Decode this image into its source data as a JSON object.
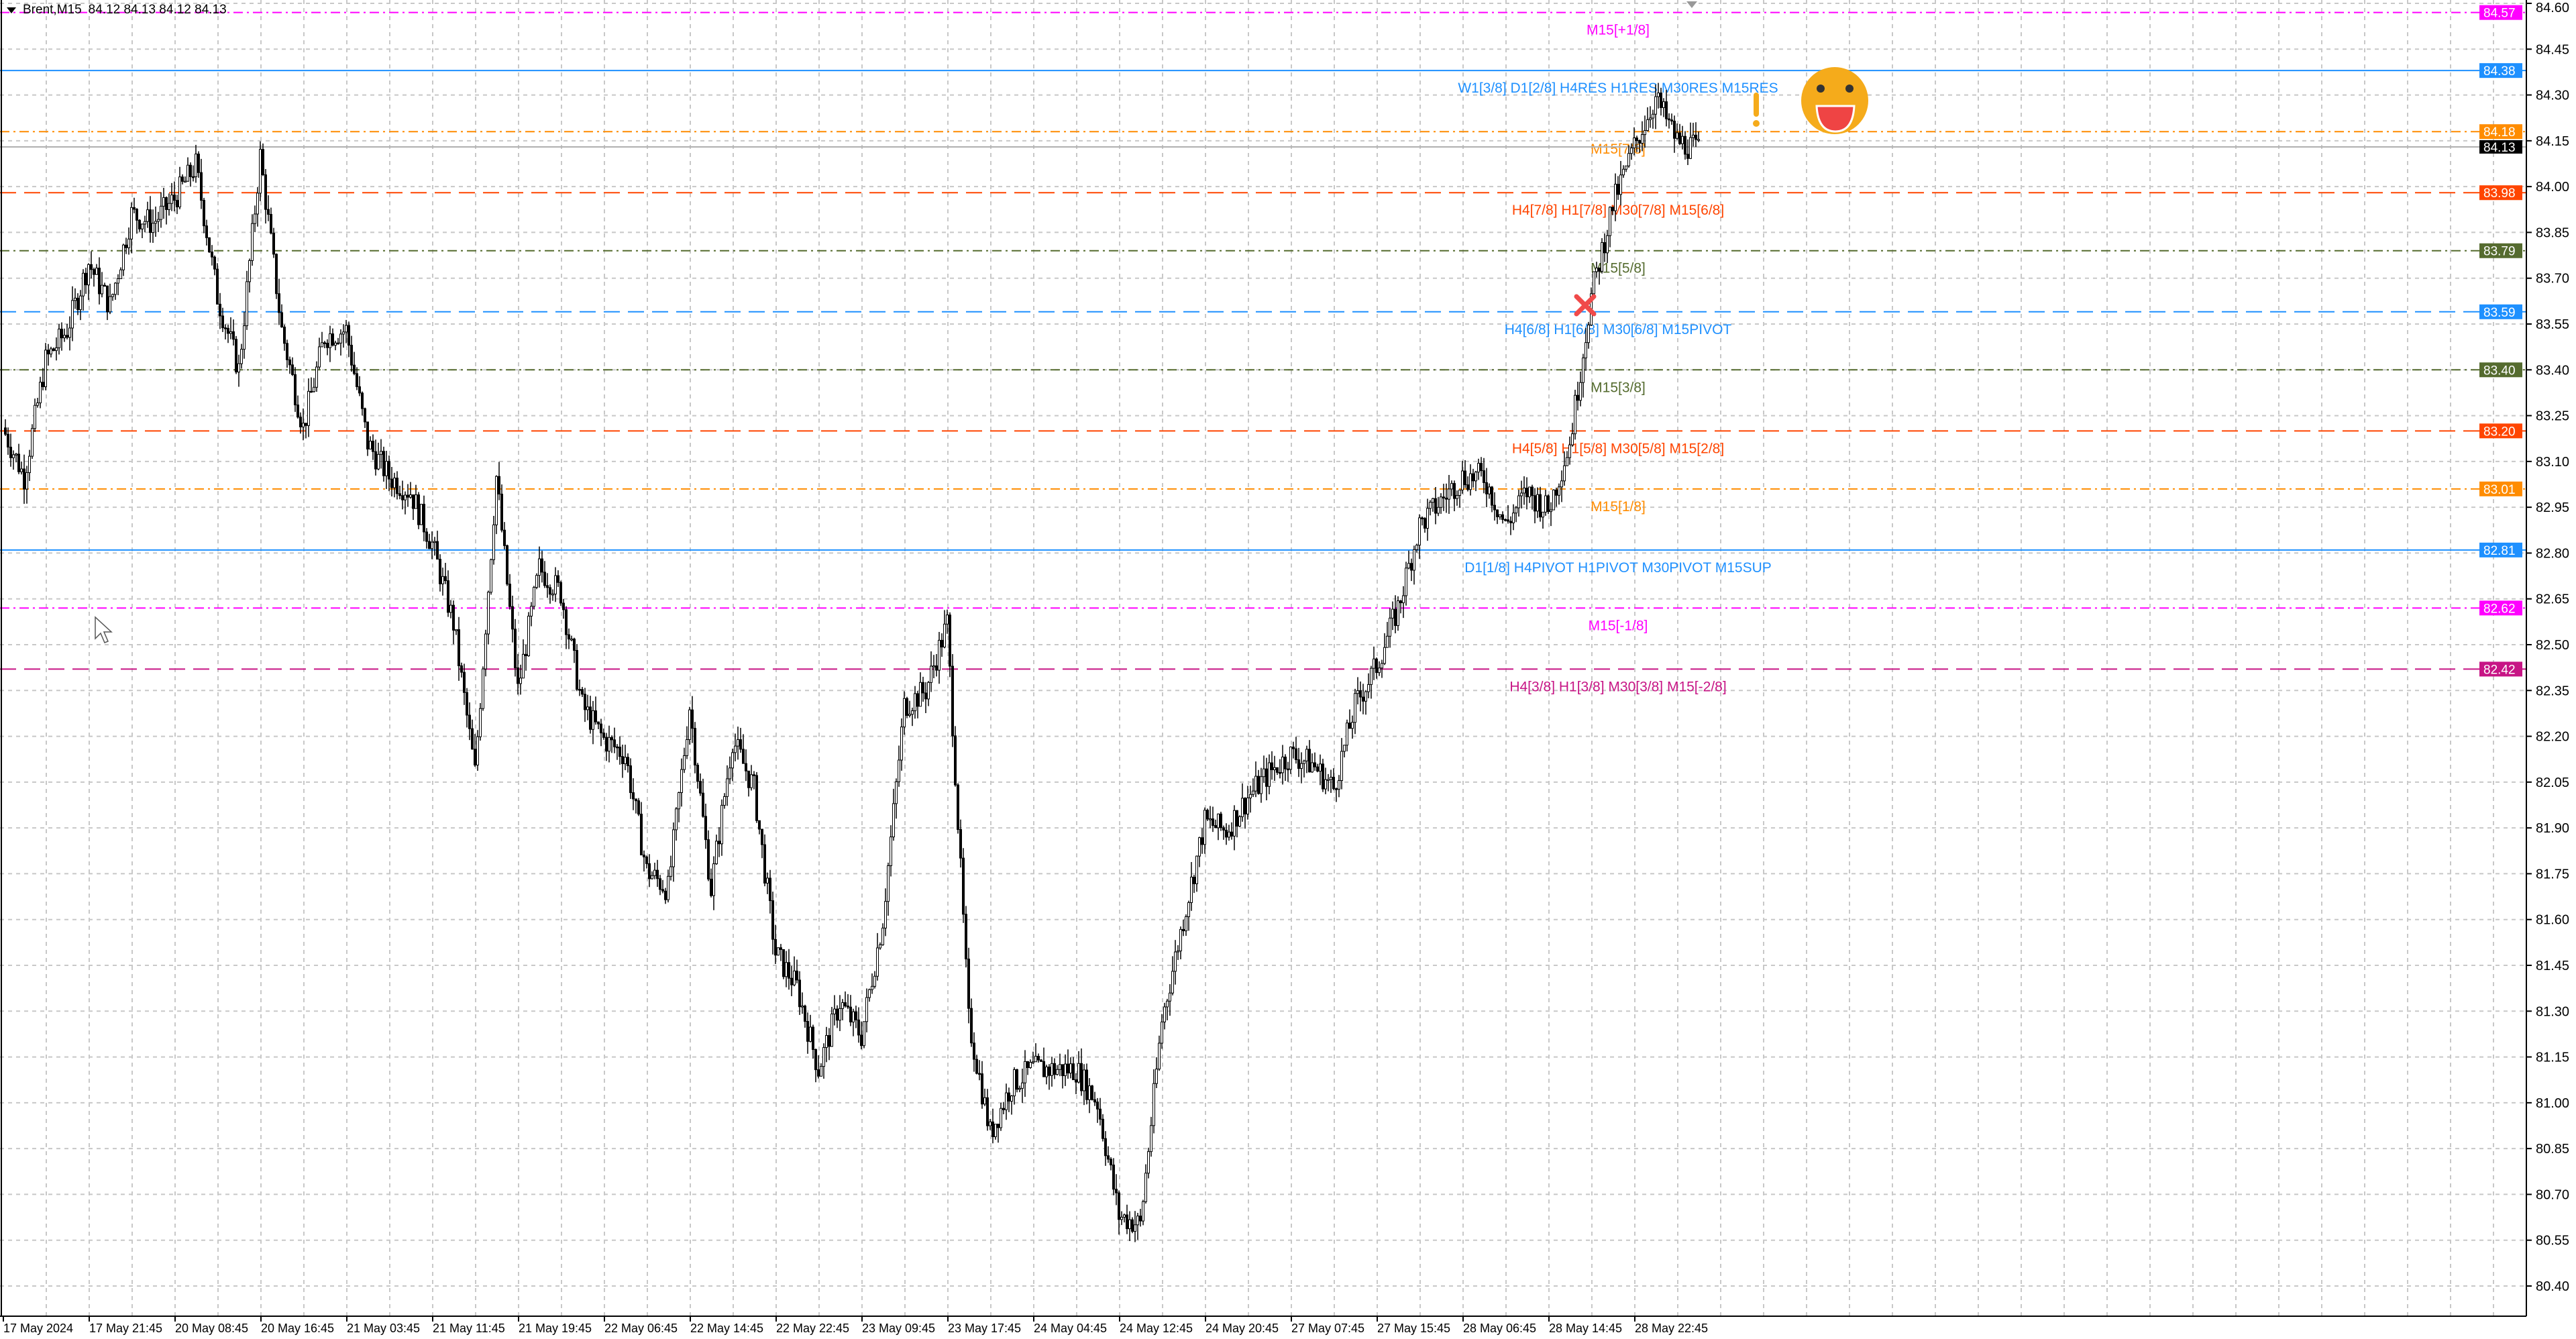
{
  "header": {
    "symbol": "Brent,M15",
    "ohlc": "84.12 84.13 84.12 84.13"
  },
  "colors": {
    "background": "#ffffff",
    "grid": "#c0c0c0",
    "bull_body": "#ffffff",
    "bear_body": "#000000",
    "candle_outline": "#000000"
  },
  "chart_data": {
    "type": "candlestick",
    "symbol": "Brent",
    "timeframe": "M15",
    "ylim": [
      80.4,
      84.6
    ],
    "grid": true,
    "y_ticks": [
      "84.60",
      "84.45",
      "84.30",
      "84.15",
      "84.00",
      "83.85",
      "83.70",
      "83.55",
      "83.40",
      "83.25",
      "83.10",
      "82.95",
      "82.80",
      "82.65",
      "82.50",
      "82.35",
      "82.20",
      "82.05",
      "81.90",
      "81.75",
      "81.60",
      "81.45",
      "81.30",
      "81.15",
      "81.00",
      "80.85",
      "80.70",
      "80.55",
      "80.40"
    ],
    "x_ticks": [
      "17 May 2024",
      "17 May 21:45",
      "20 May 08:45",
      "20 May 16:45",
      "21 May 03:45",
      "21 May 11:45",
      "21 May 19:45",
      "22 May 06:45",
      "22 May 14:45",
      "22 May 22:45",
      "23 May 09:45",
      "23 May 17:45",
      "24 May 04:45",
      "24 May 12:45",
      "24 May 20:45",
      "27 May 07:45",
      "27 May 15:45",
      "28 May 06:45",
      "28 May 14:45",
      "28 May 22:45"
    ],
    "close_every_2h": [
      83.21,
      83.05,
      83.43,
      83.53,
      83.75,
      83.61,
      83.91,
      83.88,
      83.96,
      84.07,
      83.64,
      83.4,
      84.1,
      83.53,
      83.21,
      83.51,
      83.53,
      83.16,
      83.05,
      83.0,
      82.83,
      82.57,
      82.08,
      83.05,
      82.35,
      82.75,
      82.67,
      82.3,
      82.19,
      82.14,
      81.76,
      81.7,
      82.3,
      81.7,
      82.19,
      82.03,
      81.49,
      81.38,
      81.11,
      81.33,
      81.22,
      81.6,
      82.3,
      82.35,
      82.57,
      81.27,
      80.9,
      81.06,
      81.11,
      81.11,
      81.11,
      81.0,
      80.63,
      80.6,
      81.27,
      81.6,
      81.92,
      81.89,
      82.0,
      82.08,
      82.14,
      82.11,
      82.03,
      82.3,
      82.43,
      82.62,
      82.89,
      82.97,
      83.05,
      83.05,
      82.89,
      83.0,
      82.94,
      83.16,
      83.64,
      83.94,
      84.13,
      84.29,
      84.15,
      84.12
    ],
    "current_price": 84.13,
    "levels": [
      {
        "price": 84.57,
        "badge": "84.57",
        "label": "M15[+1/8]",
        "color": "#ff00ff",
        "style": "dashdot"
      },
      {
        "price": 84.38,
        "badge": "84.38",
        "label": "W1[3/8] D1[2/8] H4RES H1RES M30RES M15RES",
        "color": "#1e90ff",
        "style": "solid"
      },
      {
        "price": 84.18,
        "badge": "84.18",
        "label": "M15[7/8]",
        "color": "#ff8c00",
        "style": "dashdot"
      },
      {
        "price": 83.98,
        "badge": "83.98",
        "label": "H4[7/8] H1[7/8] M30[7/8] M15[6/8]",
        "color": "#ff4500",
        "style": "dashed"
      },
      {
        "price": 83.79,
        "badge": "83.79",
        "label": "M15[5/8]",
        "color": "#556b2f",
        "style": "dashdot"
      },
      {
        "price": 83.59,
        "badge": "83.59",
        "label": "H4[6/8] H1[6/8] M30[6/8] M15PIVOT",
        "color": "#1e90ff",
        "style": "dashed"
      },
      {
        "price": 83.4,
        "badge": "83.40",
        "label": "M15[3/8]",
        "color": "#556b2f",
        "style": "dashdot"
      },
      {
        "price": 83.2,
        "badge": "83.20",
        "label": "H4[5/8] H1[5/8] M30[5/8] M15[2/8]",
        "color": "#ff4500",
        "style": "dashed"
      },
      {
        "price": 83.01,
        "badge": "83.01",
        "label": "M15[1/8]",
        "color": "#ff8c00",
        "style": "dashdot"
      },
      {
        "price": 82.81,
        "badge": "82.81",
        "label": "D1[1/8] H4PIVOT H1PIVOT M30PIVOT M15SUP",
        "color": "#1e90ff",
        "style": "solid"
      },
      {
        "price": 82.62,
        "badge": "82.62",
        "label": "M15[-1/8]",
        "color": "#ff00ff",
        "style": "dashdot"
      },
      {
        "price": 82.42,
        "badge": "82.42",
        "label": "H4[3/8] H1[3/8] M30[3/8] M15[-2/8]",
        "color": "#c71585",
        "style": "dashed"
      }
    ],
    "current_badge": "84.13",
    "markers": {
      "cross_icon_color": "#f04a4a",
      "smiley_color": "#f5ab1b",
      "exclamation_color": "#f5ab1b"
    }
  }
}
